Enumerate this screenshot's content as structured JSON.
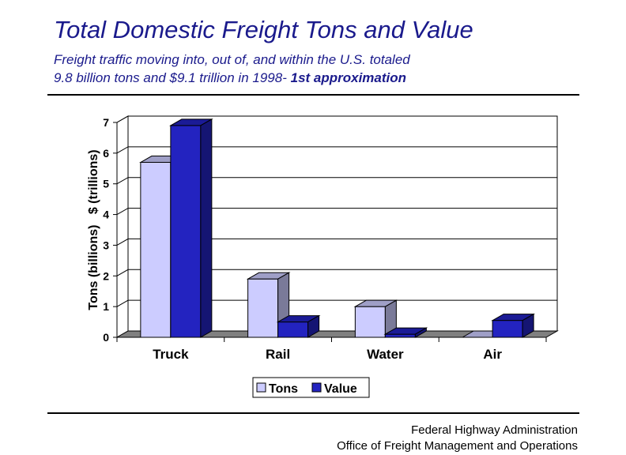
{
  "header": {
    "title": "Total Domestic Freight Tons and Value",
    "subtitle_line1": "Freight traffic moving into, out of, and within the U.S. totaled",
    "subtitle_line2": "9.8 billion tons and $9.1 trillion in 1998-",
    "subtitle_emphasis": "1st approximation"
  },
  "chart_data": {
    "type": "bar",
    "categories": [
      "Truck",
      "Rail",
      "Water",
      "Air"
    ],
    "series": [
      {
        "name": "Tons",
        "values": [
          5.7,
          1.9,
          1.0,
          0.0
        ],
        "color": "#ccccff"
      },
      {
        "name": "Value",
        "values": [
          6.9,
          0.5,
          0.1,
          0.55
        ],
        "color": "#2323c0"
      }
    ],
    "ylabel": "Tons (billions)   $ (trillions)",
    "ylim": [
      0,
      7
    ],
    "yticks": [
      "0",
      "1",
      "2",
      "3",
      "4",
      "5",
      "6",
      "7"
    ],
    "grid": true,
    "legend": "bottom",
    "style": "3d"
  },
  "footer": {
    "line1": "Federal Highway Administration",
    "line2": "Office of Freight Management and Operations"
  }
}
